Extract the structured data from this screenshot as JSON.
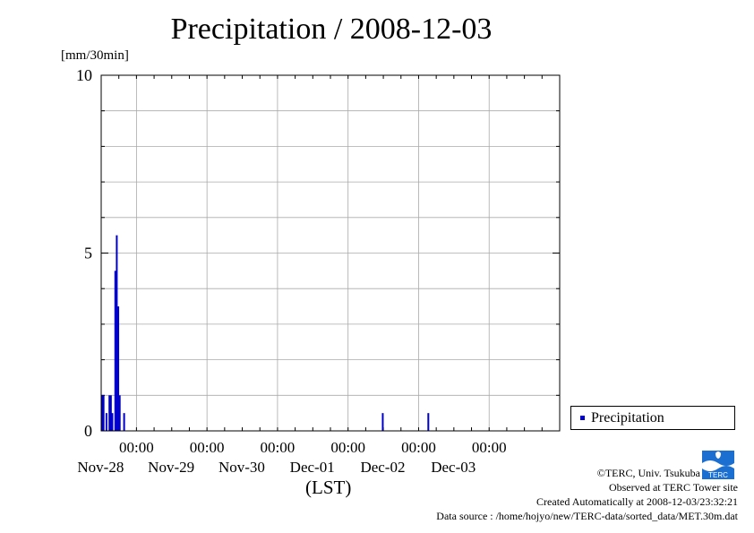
{
  "title": "Precipitation / 2008-12-03",
  "unit_label": "[mm/30min]",
  "x_axis_label": "(LST)",
  "legend": {
    "label": "Precipitation"
  },
  "credits": {
    "copyright": "©TERC, Univ. Tsukuba",
    "observed": "Observed at TERC Tower site",
    "created": "Created Automatically at 2008-12-03/23:32:21",
    "source": "Data source : /home/hojyo/new/TERC-data/sorted_data/MET.30m.dat"
  },
  "logo": {
    "text": "TERC",
    "color": "#1a6fd1"
  },
  "colors": {
    "bar": "#0000cc",
    "grid": "#aaaaaa",
    "axis": "#000000"
  },
  "chart_data": {
    "type": "bar",
    "title": "Precipitation / 2008-12-03",
    "ylabel": "[mm/30min]",
    "xlabel": "(LST)",
    "ylim": [
      0,
      10
    ],
    "yticks": [
      0,
      5,
      10
    ],
    "xlim": [
      "2008-11-27T12:00",
      "2008-12-03T24:00"
    ],
    "x_ticks": [
      {
        "time": "2008-11-28T00:00",
        "label": "00:00",
        "date": "Nov-28"
      },
      {
        "time": "2008-11-29T00:00",
        "label": "00:00",
        "date": "Nov-29"
      },
      {
        "time": "2008-11-30T00:00",
        "label": "00:00",
        "date": "Nov-30"
      },
      {
        "time": "2008-12-01T00:00",
        "label": "00:00",
        "date": "Dec-01"
      },
      {
        "time": "2008-12-02T00:00",
        "label": "00:00",
        "date": "Dec-02"
      },
      {
        "time": "2008-12-03T00:00",
        "label": "00:00",
        "date": "Dec-03"
      }
    ],
    "grid": true,
    "legend_position": "right",
    "series": [
      {
        "name": "Precipitation",
        "points": [
          {
            "t": "2008-11-27T12:30",
            "v": 1.0
          },
          {
            "t": "2008-11-27T13:00",
            "v": 1.0
          },
          {
            "t": "2008-11-27T14:00",
            "v": 0.5
          },
          {
            "t": "2008-11-27T15:00",
            "v": 1.0
          },
          {
            "t": "2008-11-27T15:30",
            "v": 1.0
          },
          {
            "t": "2008-11-27T16:00",
            "v": 0.5
          },
          {
            "t": "2008-11-27T17:00",
            "v": 4.5
          },
          {
            "t": "2008-11-27T17:30",
            "v": 5.5
          },
          {
            "t": "2008-11-27T18:00",
            "v": 3.5
          },
          {
            "t": "2008-11-27T18:30",
            "v": 1.0
          },
          {
            "t": "2008-11-27T20:00",
            "v": 0.5
          },
          {
            "t": "2008-12-01T12:00",
            "v": 0.5
          },
          {
            "t": "2008-12-02T03:30",
            "v": 0.5
          }
        ]
      }
    ]
  }
}
